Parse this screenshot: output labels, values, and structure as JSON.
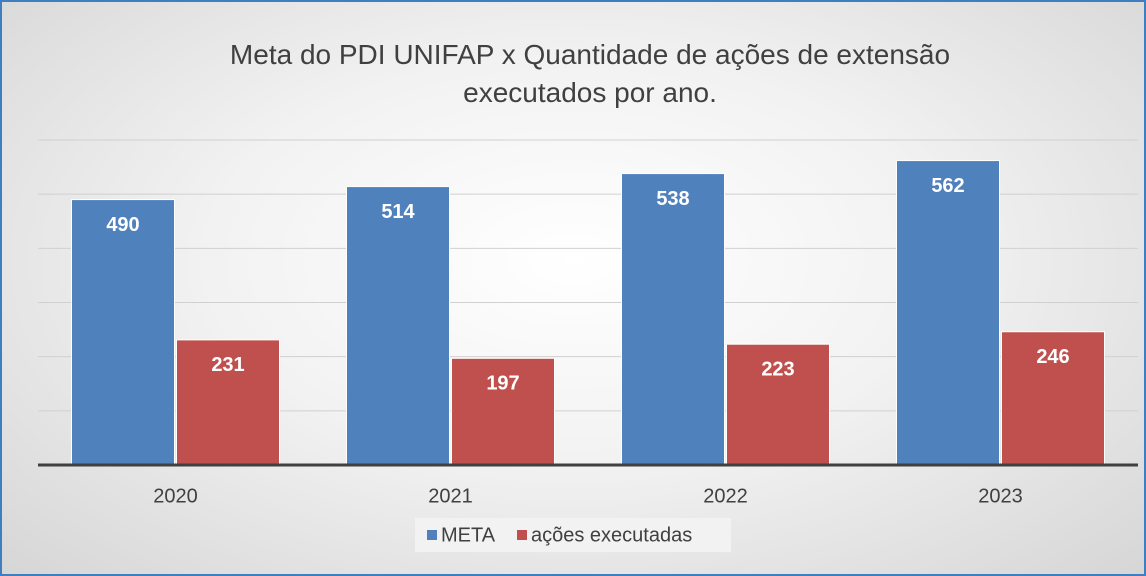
{
  "chart_data": {
    "type": "bar",
    "title": "Meta do PDI UNIFAP x Quantidade de ações de extensão executados por ano.",
    "categories": [
      "2020",
      "2021",
      "2022",
      "2023"
    ],
    "series": [
      {
        "name": "META",
        "color": "#4f81bd",
        "values": [
          490,
          514,
          538,
          562
        ]
      },
      {
        "name": "ações executadas",
        "color": "#c0504d",
        "values": [
          231,
          197,
          223,
          246
        ]
      }
    ],
    "ylim": [
      0,
      600
    ],
    "yticks": [
      0,
      100,
      200,
      300,
      400,
      500,
      600
    ],
    "grid": true,
    "legend": "bottom",
    "data_labels": true
  }
}
